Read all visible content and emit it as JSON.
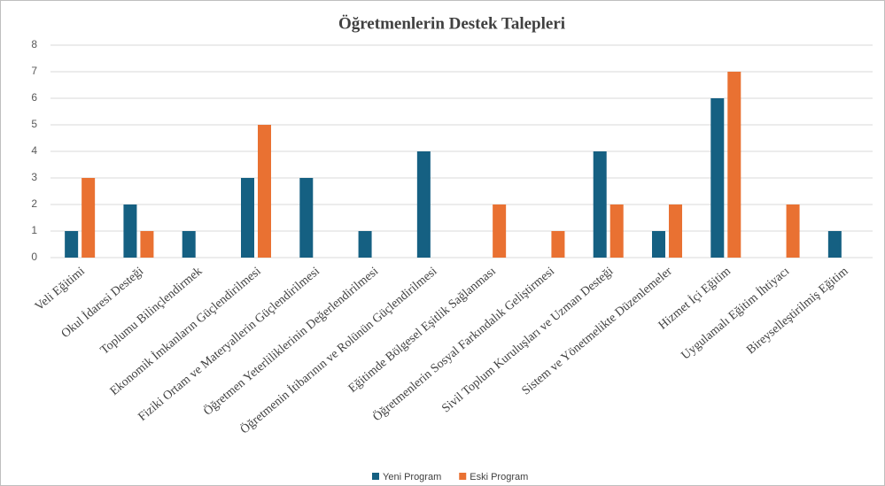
{
  "chart_data": {
    "type": "bar",
    "title": "Öğretmenlerin Destek Talepleri",
    "categories": [
      "Veli Eğitimi",
      "Okul İdaresi Desteği",
      "Toplumu Bilinçlendirmek",
      "Ekonomik İmkanların Güçlendirilmesi",
      "Fiziki Ortam ve Materyallerin Güçlendirilmesi",
      "Öğretmen Yeterliliklerinin Değerlendirilmesi",
      "Öğretmenin İtibarının ve Rolünün Güçlendirilmesi",
      "Eğitimde Bölgesel Eşitlik Sağlanması",
      "Öğretmenlerin Sosyal Farkındalık Geliştirmesi",
      "Sivil Toplum Kuruluşları ve Uzman Desteği",
      "Sistem ve Yönetmelikte Düzenlemeler",
      "Hizmet İçi Eğitim",
      "Uygulamalı Eğitim İhtiyacı",
      "Bireyselleştirilmiş Eğitim"
    ],
    "series": [
      {
        "name": "Yeni Program",
        "color": "#156082",
        "values": [
          1,
          2,
          1,
          3,
          3,
          1,
          4,
          0,
          0,
          4,
          1,
          6,
          0,
          1
        ]
      },
      {
        "name": "Eski Program",
        "color": "#e97132",
        "values": [
          3,
          1,
          0,
          5,
          0,
          0,
          0,
          2,
          1,
          2,
          2,
          7,
          2,
          0
        ]
      }
    ],
    "ylim": [
      0,
      8
    ],
    "yticks": [
      0,
      1,
      2,
      3,
      4,
      5,
      6,
      7,
      8
    ],
    "grid": true,
    "legend": "bottom"
  }
}
